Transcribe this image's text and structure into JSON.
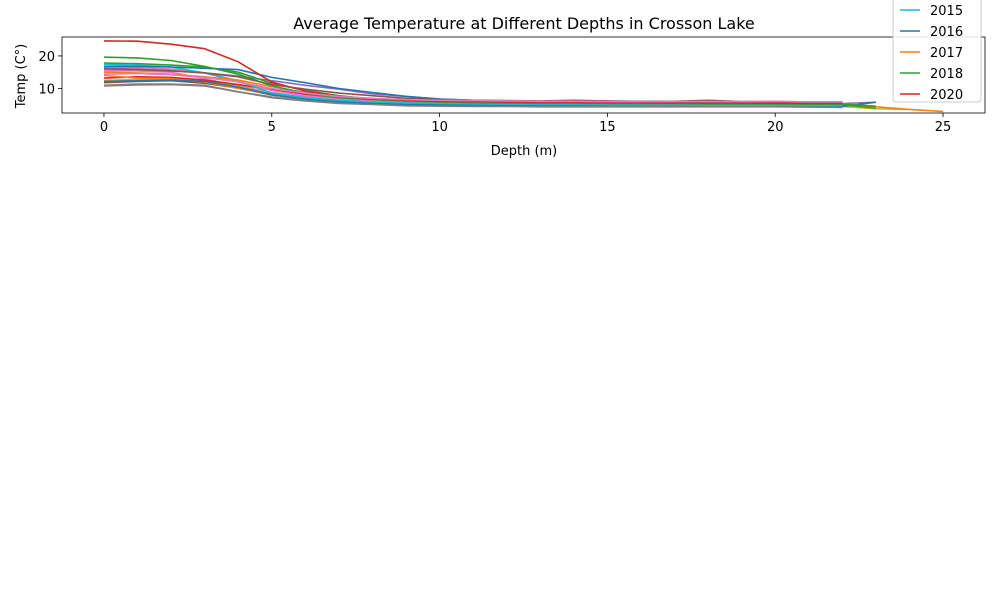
{
  "chart_data": {
    "type": "line",
    "title": "Average Temperature at Different Depths in Crosson Lake",
    "xlabel": "Depth (m)",
    "ylabel": "Temp (C°)",
    "xlim": [
      -1.25,
      26.25
    ],
    "ylim": [
      2.5,
      25.8
    ],
    "xticks": [
      0,
      5,
      10,
      15,
      20,
      25
    ],
    "yticks": [
      10,
      20
    ],
    "grid": false,
    "legend_position": "top-right",
    "x": [
      0,
      1,
      2,
      3,
      4,
      5,
      6,
      7,
      8,
      9,
      10,
      11,
      12,
      13,
      14,
      15,
      16,
      17,
      18,
      19,
      20,
      21,
      22,
      23,
      24,
      25
    ],
    "series": [
      {
        "name": "",
        "color": "#8c564b",
        "values": [
          11.8,
          12.2,
          12.4,
          11.6,
          10.2,
          8.0,
          6.8,
          6.0,
          5.6,
          5.3,
          5.2,
          5.1,
          5.0,
          4.9,
          4.9,
          4.9,
          4.8,
          4.8,
          4.8,
          4.8,
          4.8,
          4.7,
          4.7,
          null,
          null,
          null
        ]
      },
      {
        "name": "",
        "color": "#e377c2",
        "values": [
          15.5,
          15.4,
          15.0,
          13.0,
          10.8,
          8.8,
          7.4,
          6.6,
          6.0,
          5.7,
          5.5,
          5.4,
          5.3,
          5.2,
          5.2,
          5.1,
          5.1,
          5.1,
          5.0,
          5.0,
          5.0,
          5.0,
          4.9,
          null,
          null,
          null
        ]
      },
      {
        "name": "",
        "color": "#7f7f7f",
        "values": [
          10.8,
          11.1,
          11.2,
          10.8,
          9.0,
          7.4,
          6.4,
          5.6,
          5.2,
          4.9,
          4.8,
          4.7,
          4.7,
          4.6,
          4.6,
          4.6,
          4.6,
          4.6,
          4.6,
          4.6,
          4.5,
          4.5,
          4.4,
          null,
          null,
          null
        ]
      },
      {
        "name": "",
        "color": "#bcbd22",
        "values": [
          12.5,
          12.8,
          13.0,
          12.4,
          10.6,
          8.4,
          7.0,
          6.2,
          5.7,
          5.3,
          5.1,
          5.0,
          4.9,
          4.8,
          4.8,
          4.8,
          4.7,
          4.7,
          4.7,
          4.7,
          4.6,
          4.6,
          4.5,
          3.8,
          3.6,
          null
        ]
      },
      {
        "name": "",
        "color": "#9467bd",
        "values": [
          16.2,
          16.0,
          15.6,
          14.8,
          13.8,
          12.4,
          11.0,
          9.8,
          8.4,
          7.6,
          6.8,
          6.4,
          6.2,
          6.0,
          6.0,
          5.8,
          5.8,
          5.7,
          5.6,
          5.6,
          5.5,
          5.5,
          5.4,
          5.8,
          null,
          null
        ]
      },
      {
        "name": "",
        "color": "#d62728",
        "values": [
          13.2,
          13.6,
          13.4,
          12.6,
          11.2,
          9.6,
          8.2,
          7.2,
          6.6,
          6.2,
          5.9,
          5.7,
          5.6,
          5.5,
          5.5,
          5.4,
          5.4,
          5.4,
          5.3,
          5.3,
          5.3,
          5.2,
          5.2,
          null,
          null,
          null
        ]
      },
      {
        "name": "",
        "color": "#ff7f0e",
        "values": [
          14.0,
          13.2,
          13.0,
          12.0,
          10.0,
          8.2,
          7.0,
          6.2,
          5.7,
          5.4,
          5.2,
          5.1,
          5.0,
          4.9,
          4.9,
          4.9,
          4.8,
          4.8,
          4.8,
          4.8,
          4.7,
          4.7,
          4.6,
          null,
          null,
          null
        ]
      },
      {
        "name": "",
        "color": "#e377c2",
        "values": [
          16.6,
          16.4,
          16.0,
          14.8,
          12.0,
          9.4,
          7.8,
          6.8,
          6.2,
          5.9,
          5.6,
          5.5,
          5.4,
          5.3,
          5.3,
          5.2,
          5.2,
          5.2,
          5.1,
          5.1,
          5.1,
          5.0,
          5.0,
          null,
          null,
          null
        ]
      },
      {
        "name": "",
        "color": "#1f77b4",
        "values": [
          12.2,
          12.4,
          12.6,
          12.2,
          10.4,
          8.2,
          6.8,
          6.0,
          5.5,
          5.2,
          5.0,
          4.9,
          4.8,
          4.8,
          4.7,
          4.7,
          4.7,
          4.7,
          4.6,
          4.6,
          4.6,
          4.5,
          4.5,
          5.8,
          null,
          null
        ]
      },
      {
        "name": "",
        "color": "#2ca02c",
        "values": [
          17.8,
          17.6,
          17.2,
          16.6,
          15.0,
          11.6,
          9.4,
          7.8,
          6.8,
          6.2,
          5.8,
          5.6,
          5.5,
          5.4,
          5.3,
          5.3,
          5.2,
          5.2,
          5.2,
          5.1,
          5.1,
          5.0,
          5.0,
          4.0,
          null,
          null
        ]
      },
      {
        "name": "2015",
        "color": "#17becf",
        "values": [
          17.4,
          17.2,
          16.6,
          14.8,
          12.4,
          8.6,
          7.2,
          6.4,
          5.9,
          5.6,
          5.4,
          5.3,
          5.2,
          5.1,
          5.1,
          5.0,
          5.0,
          5.0,
          4.9,
          4.9,
          4.9,
          4.8,
          4.8,
          null,
          null,
          null
        ]
      },
      {
        "name": "2016",
        "color": "#1f77b4",
        "values": [
          16.8,
          16.8,
          16.6,
          16.2,
          15.8,
          13.4,
          11.8,
          10.0,
          8.8,
          7.6,
          6.8,
          6.4,
          6.1,
          5.9,
          5.8,
          5.7,
          5.6,
          5.6,
          5.6,
          5.5,
          5.5,
          5.5,
          5.4,
          null,
          null,
          null
        ]
      },
      {
        "name": "2017",
        "color": "#ff7f0e",
        "values": [
          15.0,
          14.8,
          14.4,
          13.6,
          12.6,
          10.6,
          8.8,
          7.4,
          6.6,
          6.2,
          5.9,
          5.8,
          5.7,
          5.6,
          5.6,
          5.5,
          5.5,
          5.4,
          5.4,
          5.4,
          5.4,
          5.3,
          5.3,
          4.4,
          3.6,
          3.0
        ]
      },
      {
        "name": "2018",
        "color": "#2ca02c",
        "values": [
          19.6,
          19.4,
          18.6,
          16.8,
          14.4,
          10.8,
          8.6,
          7.2,
          6.6,
          6.2,
          5.9,
          5.7,
          5.6,
          5.5,
          5.5,
          5.4,
          5.4,
          5.4,
          5.3,
          5.3,
          5.3,
          5.2,
          5.2,
          4.6,
          null,
          null
        ]
      },
      {
        "name": "2020",
        "color": "#d62728",
        "values": [
          24.6,
          24.5,
          23.6,
          22.2,
          18.2,
          12.0,
          9.2,
          7.6,
          6.8,
          6.4,
          6.1,
          6.0,
          5.9,
          5.8,
          5.8,
          5.7,
          5.7,
          5.6,
          5.6,
          5.6,
          5.5,
          5.5,
          5.5,
          null,
          null,
          null
        ]
      },
      {
        "name": "",
        "color": "#8c564b",
        "values": [
          16.0,
          15.8,
          15.4,
          14.8,
          13.6,
          11.2,
          9.8,
          8.6,
          7.8,
          7.0,
          6.6,
          6.4,
          6.3,
          6.2,
          6.4,
          6.2,
          6.1,
          6.1,
          6.4,
          6.0,
          6.0,
          5.9,
          5.9,
          null,
          null,
          null
        ]
      },
      {
        "name": "",
        "color": "#e377c2",
        "values": [
          14.4,
          14.6,
          14.2,
          13.4,
          12.0,
          10.0,
          8.6,
          7.6,
          7.0,
          6.6,
          6.4,
          6.3,
          6.2,
          6.1,
          6.1,
          6.0,
          6.0,
          6.0,
          6.0,
          6.0,
          6.1,
          5.9,
          5.9,
          null,
          null,
          null
        ]
      },
      {
        "name": "",
        "color": "#7f7f7f",
        "values": [
          11.0,
          11.4,
          11.4,
          11.0,
          9.0,
          7.2,
          6.2,
          5.4,
          5.1,
          4.7,
          4.6,
          4.5,
          4.5,
          4.4,
          4.4,
          4.4,
          4.4,
          4.4,
          4.4,
          4.4,
          4.4,
          4.3,
          4.2,
          null,
          null,
          null
        ]
      }
    ]
  }
}
